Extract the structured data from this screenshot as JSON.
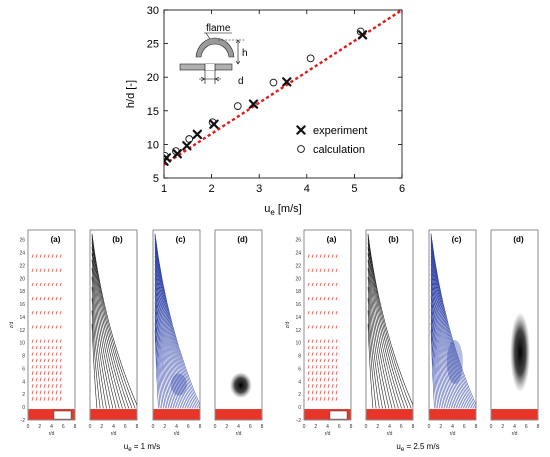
{
  "colors": {
    "fit_line": "#e01b1b",
    "marker": "#111111",
    "contour_blue": "#2a3fa6",
    "contour_black": "#222222",
    "vector_red": "#e8352a",
    "burner_red": "#e8352a"
  },
  "chart_data": [
    {
      "type": "scatter",
      "xlabel": "u",
      "xlabel_sub": "e",
      "xlabel_unit": "[m/s]",
      "ylabel": "h/d [-]",
      "xlim": [
        1,
        6
      ],
      "ylim": [
        5,
        30
      ],
      "xticks": [
        "1",
        "2",
        "3",
        "4",
        "5",
        "6"
      ],
      "yticks": [
        "5",
        "10",
        "15",
        "20",
        "25",
        "30"
      ],
      "legend_position": "right",
      "series": [
        {
          "name": "experiment",
          "marker": "x",
          "x": [
            1.0,
            1.05,
            1.28,
            1.48,
            1.7,
            2.05,
            2.88,
            3.58,
            5.17
          ],
          "y": [
            7.5,
            8.0,
            8.6,
            9.8,
            11.5,
            13.0,
            16.0,
            19.3,
            26.3
          ]
        },
        {
          "name": "calculation",
          "marker": "o",
          "x": [
            1.02,
            1.25,
            1.53,
            2.02,
            2.55,
            3.3,
            4.08,
            5.13
          ],
          "y": [
            8.3,
            9.0,
            10.8,
            13.3,
            15.7,
            19.2,
            22.8,
            26.8
          ]
        },
        {
          "marker": "line",
          "x": [
            1,
            6
          ],
          "y": [
            7.0,
            30.0
          ]
        }
      ],
      "inset_labels": {
        "flame": "flame",
        "h": "h",
        "d": "d"
      }
    },
    {
      "type": "panel-group",
      "caption": "u",
      "caption_sub": "e",
      "caption_rest": " = 1 m/s",
      "ylabel": "z/d",
      "xlabel": "r/d",
      "yticks": [
        "-2",
        "0",
        "2",
        "4",
        "6",
        "8",
        "10",
        "12",
        "14",
        "16",
        "18",
        "20",
        "22",
        "24",
        "26"
      ],
      "xticks": [
        "0",
        "2",
        "4",
        "6",
        "8"
      ],
      "panel_labels": [
        "(a)",
        "(b)",
        "(c)",
        "(d)"
      ]
    },
    {
      "type": "panel-group",
      "caption": "u",
      "caption_sub": "e",
      "caption_rest": " = 2.5 m/s",
      "ylabel": "z/d",
      "xlabel": "r/d",
      "yticks": [
        "-2",
        "0",
        "2",
        "4",
        "6",
        "8",
        "10",
        "12",
        "14",
        "16",
        "18",
        "20",
        "22",
        "24",
        "26"
      ],
      "xticks": [
        "0",
        "2",
        "4",
        "6",
        "8"
      ],
      "panel_labels": [
        "(a)",
        "(b)",
        "(c)",
        "(d)"
      ]
    }
  ]
}
